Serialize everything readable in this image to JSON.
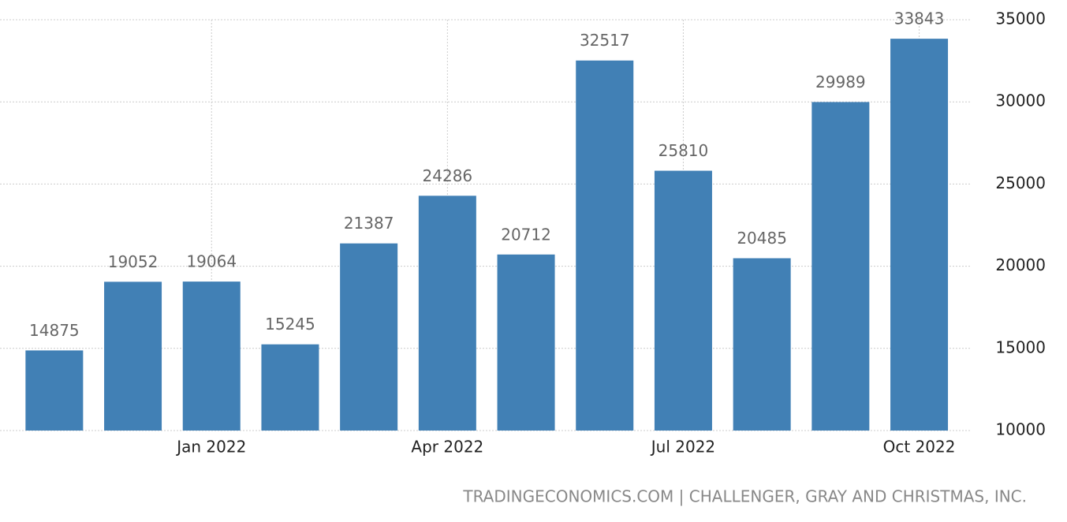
{
  "chart_data": {
    "type": "bar",
    "categories": [
      null,
      null,
      "Jan 2022",
      null,
      null,
      "Apr 2022",
      null,
      null,
      "Jul 2022",
      null,
      null,
      "Oct 2022"
    ],
    "values": [
      14875,
      19052,
      19064,
      15245,
      21387,
      24286,
      20712,
      32517,
      25810,
      20485,
      29989,
      33843
    ],
    "color": "#4180b5",
    "ylim": [
      10000,
      35000
    ],
    "yticks": [
      10000,
      15000,
      20000,
      25000,
      30000,
      35000
    ],
    "grid": true,
    "source": "TRADINGECONOMICS.COM | CHALLENGER, GRAY AND CHRISTMAS, INC."
  }
}
